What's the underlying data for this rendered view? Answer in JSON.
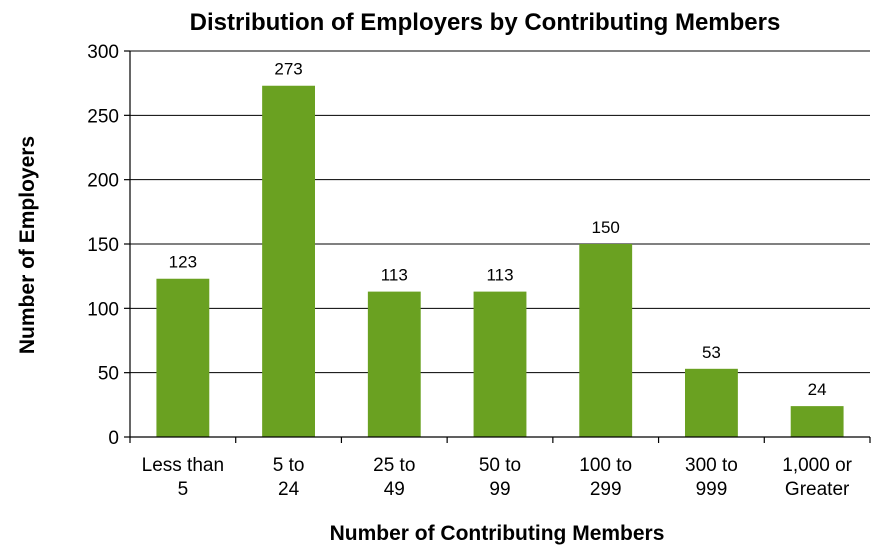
{
  "chart_data": {
    "type": "bar",
    "title": "Distribution of Employers by Contributing Members",
    "xlabel": "Number of Contributing Members",
    "ylabel": "Number of Employers",
    "categories": [
      [
        "Less than",
        "5"
      ],
      [
        "5 to",
        "24"
      ],
      [
        "25 to",
        "49"
      ],
      [
        "50 to",
        "99"
      ],
      [
        "100 to",
        "299"
      ],
      [
        "300 to",
        "999"
      ],
      [
        "1,000 or",
        "Greater"
      ]
    ],
    "values": [
      123,
      273,
      113,
      113,
      150,
      53,
      24
    ],
    "data_labels": [
      "123",
      "273",
      "113",
      "113",
      "150",
      "53",
      "24"
    ],
    "ylim": [
      0,
      300
    ],
    "yticks": [
      0,
      50,
      100,
      150,
      200,
      250,
      300
    ],
    "ytick_labels": [
      "0",
      "50",
      "100",
      "150",
      "200",
      "250",
      "300"
    ],
    "grid": true,
    "legend": "none",
    "bar_color": "#6aa121"
  }
}
